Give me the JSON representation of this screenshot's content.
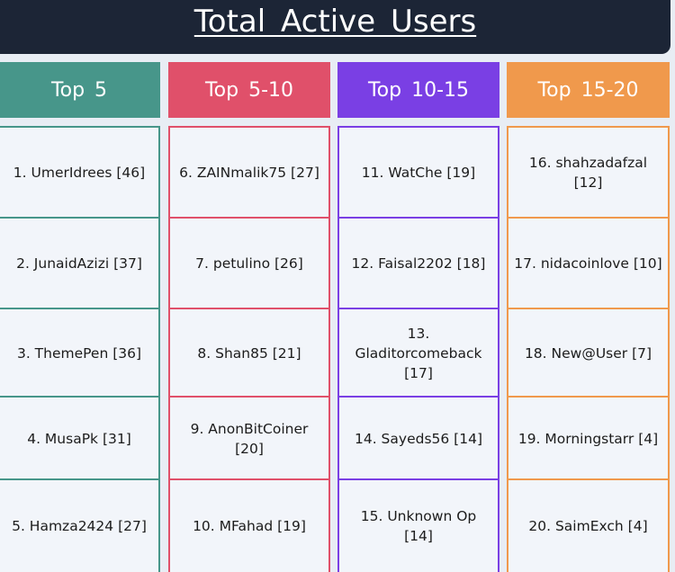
{
  "title": "Total Active Users",
  "columns": [
    {
      "header": "Top 5",
      "color": "#47968a",
      "entries": [
        "1. UmerIdrees [46]",
        "2. JunaidAzizi [37]",
        "3. ThemePen [36]",
        "4. MusaPk [31]",
        "5. Hamza2424 [27]"
      ]
    },
    {
      "header": "Top 5-10",
      "color": "#e0506a",
      "entries": [
        "6. ZAINmalik75 [27]",
        "7. petulino [26]",
        "8. Shan85 [21]",
        "9. AnonBitCoiner [20]",
        "10. MFahad [19]"
      ]
    },
    {
      "header": "Top 10-15",
      "color": "#7a3fe4",
      "entries": [
        "11. WatChe [19]",
        "12. Faisal2202 [18]",
        "13. Gladitorcomeback [17]",
        "14. Sayeds56 [14]",
        "15. Unknown Op [14]"
      ]
    },
    {
      "header": "Top 15-20",
      "color": "#f0994c",
      "entries": [
        "16. shahzadafzal [12]",
        "17. nidacoinlove [10]",
        "18. New@User [7]",
        "19. Morningstarr [4]",
        "20. SaimExch [4]"
      ]
    }
  ]
}
